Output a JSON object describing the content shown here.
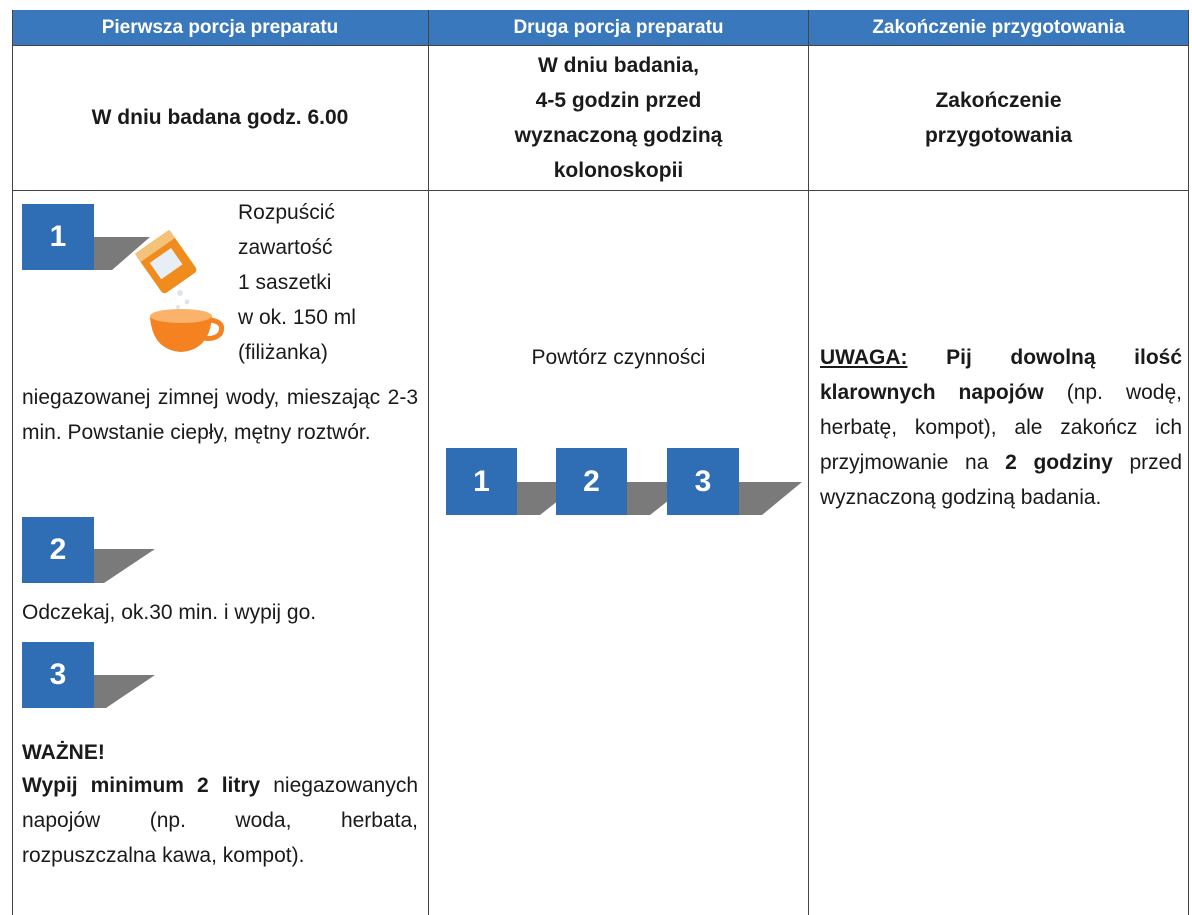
{
  "table": {
    "header": [
      "Pierwsza porcja preparatu",
      "Druga porcja preparatu",
      "Zakończenie przygotowania"
    ],
    "intro": {
      "col1": "W dniu badana godz. 6.00",
      "col2": [
        "W dniu badania,",
        "4-5 godzin przed",
        "wyznaczoną godziną",
        "kolonoskopii"
      ],
      "col3": [
        "Zakończenie",
        "przygotowania"
      ]
    },
    "first": {
      "step1": {
        "number": "1",
        "lines": [
          "Rozpuścić",
          "zawartość",
          "1 saszetki",
          "w ok. 150 ml",
          "(filiżanka)"
        ],
        "text": "niegazowanej zimnej wody, mieszając 2-3 min. Powstanie ciepły, mętny roztwór."
      },
      "step2": {
        "number": "2",
        "text": "Odczekaj, ok.30 min. i wypij go."
      },
      "step3": {
        "number": "3"
      },
      "important": {
        "title": "WAŻNE!",
        "bold": "Wypij minimum 2 litry",
        "text": "niegazowanych napojów (np. woda, herbata, rozpuszczalna kawa, kompot)."
      }
    },
    "second": {
      "text": "Powtórz czynności",
      "steps": [
        "1",
        "2",
        "3"
      ]
    },
    "third": {
      "label": "UWAGA:",
      "bold": "Pij dowolną ilość klarownych napojów",
      "text": "(np. wodę, herbatę, kompot), ale zakończ ich przyjmowanie na",
      "bold2": "2 godziny",
      "text2": "przed wyznaczoną godziną badania."
    }
  }
}
